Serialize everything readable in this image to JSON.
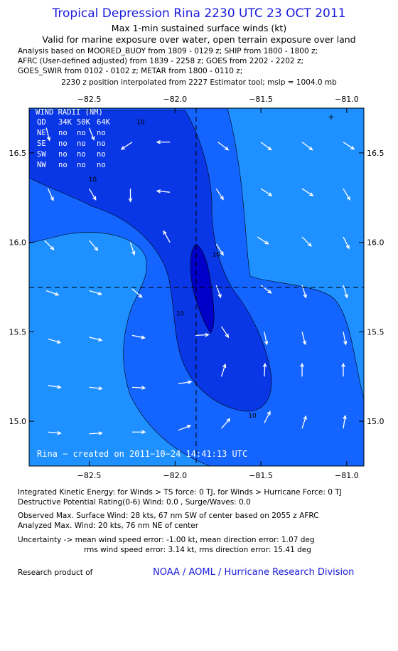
{
  "header": {
    "title": "Tropical Depression Rina 2230 UTC 23 OCT 2011",
    "subtitle_1": "Max 1-min sustained surface winds (kt)",
    "subtitle_2": "Valid for marine exposure over water, open terrain exposure over land"
  },
  "analysis": {
    "line_1": "Analysis based on MOORED_BUOY from 1809 - 0129 z; SHIP from 1800 - 1800 z;",
    "line_2": "AFRC (User-defined adjusted) from 1839 - 2258 z; GOES from 2202 - 2202 z;",
    "line_3": "GOES_SWIR from 0102 - 0102 z; METAR from 1800 - 0110 z;",
    "line_4": "2230 z position interpolated from 2227 Estimator tool; mslp = 1004.0 mb"
  },
  "colors": {
    "light_blue": "#1e90ff",
    "mid_blue": "#1464ff",
    "dark_blue": "#0a37e6",
    "darkest_blue": "#0000c8",
    "arrow": "#ffffff",
    "link": "#1a1adc"
  },
  "chart_data": {
    "type": "contour-vector-map",
    "xlim": [
      -82.85,
      -80.9
    ],
    "ylim": [
      14.75,
      16.75
    ],
    "x_ticks": [
      -82.5,
      -82.0,
      -81.5,
      -81.0
    ],
    "x_tick_labels": [
      "−82.5",
      "−82.0",
      "−81.5",
      "−81.0"
    ],
    "y_ticks": [
      15.0,
      15.5,
      16.0,
      16.5
    ],
    "y_tick_labels": [
      "15.0",
      "15.5",
      "16.0",
      "16.5"
    ],
    "center": {
      "lon": -81.92,
      "lat": 15.74
    },
    "contour_labels": [
      {
        "text": "10",
        "lon": -82.2,
        "lat": 16.66
      },
      {
        "text": "10",
        "lon": -82.48,
        "lat": 16.34
      },
      {
        "text": "10",
        "lon": -81.76,
        "lat": 15.92
      },
      {
        "text": "10",
        "lon": -81.97,
        "lat": 15.59
      },
      {
        "text": "10",
        "lon": -81.55,
        "lat": 15.02
      }
    ],
    "wind_radii": {
      "title": "WIND RADII (NM)",
      "header": [
        "QD",
        "34K",
        "50K",
        "64K"
      ],
      "rows": [
        [
          "NE",
          "no",
          "no",
          "no"
        ],
        [
          "SE",
          "no",
          "no",
          "no"
        ],
        [
          "SW",
          "no",
          "no",
          "no"
        ],
        [
          "NW",
          "no",
          "no",
          "no"
        ]
      ]
    },
    "credit": "Rina − created on 2011−10−24 14:41:13 UTC",
    "wind_vectors": [
      {
        "lon": -82.75,
        "lat": 16.64,
        "u": 0.25,
        "v": -1.0
      },
      {
        "lon": -82.5,
        "lat": 16.64,
        "u": 0.4,
        "v": -1.0
      },
      {
        "lon": -82.25,
        "lat": 16.56,
        "u": -0.9,
        "v": -0.6
      },
      {
        "lon": -82.03,
        "lat": 16.56,
        "u": -1.0,
        "v": 0.0
      },
      {
        "lon": -81.75,
        "lat": 16.56,
        "u": 0.8,
        "v": -0.6
      },
      {
        "lon": -81.5,
        "lat": 16.56,
        "u": 0.8,
        "v": -0.6
      },
      {
        "lon": -81.26,
        "lat": 16.56,
        "u": 0.8,
        "v": -0.6
      },
      {
        "lon": -81.02,
        "lat": 16.56,
        "u": 0.85,
        "v": -0.55
      },
      {
        "lon": -82.74,
        "lat": 16.3,
        "u": 0.4,
        "v": -0.9
      },
      {
        "lon": -82.5,
        "lat": 16.3,
        "u": 0.5,
        "v": -0.85
      },
      {
        "lon": -82.26,
        "lat": 16.3,
        "u": 0.0,
        "v": -1.0
      },
      {
        "lon": -82.03,
        "lat": 16.28,
        "u": -1.0,
        "v": 0.1
      },
      {
        "lon": -81.76,
        "lat": 16.3,
        "u": 0.55,
        "v": -0.85
      },
      {
        "lon": -81.5,
        "lat": 16.3,
        "u": 0.85,
        "v": -0.55
      },
      {
        "lon": -81.26,
        "lat": 16.3,
        "u": 0.85,
        "v": -0.55
      },
      {
        "lon": -81.02,
        "lat": 16.3,
        "u": 0.5,
        "v": -0.85
      },
      {
        "lon": -82.76,
        "lat": 16.01,
        "u": 0.7,
        "v": -0.7
      },
      {
        "lon": -82.5,
        "lat": 16.01,
        "u": 0.65,
        "v": -0.75
      },
      {
        "lon": -82.26,
        "lat": 16.0,
        "u": 0.3,
        "v": -0.95
      },
      {
        "lon": -82.03,
        "lat": 16.0,
        "u": -0.5,
        "v": 0.9
      },
      {
        "lon": -81.76,
        "lat": 15.99,
        "u": 0.55,
        "v": -0.85
      },
      {
        "lon": -81.52,
        "lat": 16.03,
        "u": 0.85,
        "v": -0.55
      },
      {
        "lon": -81.26,
        "lat": 16.03,
        "u": 0.7,
        "v": -0.7
      },
      {
        "lon": -81.02,
        "lat": 16.03,
        "u": 0.45,
        "v": -0.9
      },
      {
        "lon": -82.75,
        "lat": 15.73,
        "u": 1.0,
        "v": -0.35
      },
      {
        "lon": -82.5,
        "lat": 15.73,
        "u": 1.0,
        "v": -0.3
      },
      {
        "lon": -82.25,
        "lat": 15.74,
        "u": 0.75,
        "v": -0.65
      },
      {
        "lon": -81.76,
        "lat": 15.76,
        "u": 0.35,
        "v": -0.95
      },
      {
        "lon": -81.5,
        "lat": 15.76,
        "u": 0.8,
        "v": -0.6
      },
      {
        "lon": -81.26,
        "lat": 15.76,
        "u": 0.3,
        "v": -0.95
      },
      {
        "lon": -81.02,
        "lat": 15.76,
        "u": 0.3,
        "v": -0.95
      },
      {
        "lon": -82.74,
        "lat": 15.46,
        "u": 1.0,
        "v": -0.3
      },
      {
        "lon": -82.5,
        "lat": 15.47,
        "u": 1.0,
        "v": -0.25
      },
      {
        "lon": -82.25,
        "lat": 15.48,
        "u": 1.0,
        "v": -0.2
      },
      {
        "lon": -81.88,
        "lat": 15.48,
        "u": 1.0,
        "v": 0.05
      },
      {
        "lon": -81.73,
        "lat": 15.53,
        "u": 0.55,
        "v": -0.85
      },
      {
        "lon": -81.48,
        "lat": 15.5,
        "u": 0.2,
        "v": -1.0
      },
      {
        "lon": -81.26,
        "lat": 15.5,
        "u": 0.25,
        "v": -1.0
      },
      {
        "lon": -81.02,
        "lat": 15.5,
        "u": 0.2,
        "v": -1.0
      },
      {
        "lon": -82.74,
        "lat": 15.2,
        "u": 1.0,
        "v": -0.15
      },
      {
        "lon": -82.5,
        "lat": 15.19,
        "u": 1.0,
        "v": -0.1
      },
      {
        "lon": -82.25,
        "lat": 15.19,
        "u": 1.0,
        "v": -0.05
      },
      {
        "lon": -81.98,
        "lat": 15.21,
        "u": 1.0,
        "v": 0.15
      },
      {
        "lon": -81.73,
        "lat": 15.25,
        "u": 0.3,
        "v": 0.95
      },
      {
        "lon": -81.48,
        "lat": 15.25,
        "u": 0.05,
        "v": 1.0
      },
      {
        "lon": -81.26,
        "lat": 15.25,
        "u": 0.0,
        "v": 1.0
      },
      {
        "lon": -81.02,
        "lat": 15.25,
        "u": 0.0,
        "v": 1.0
      },
      {
        "lon": -82.74,
        "lat": 14.94,
        "u": 1.0,
        "v": -0.1
      },
      {
        "lon": -82.5,
        "lat": 14.93,
        "u": 1.0,
        "v": 0.05
      },
      {
        "lon": -82.25,
        "lat": 14.94,
        "u": 1.0,
        "v": 0.0
      },
      {
        "lon": -81.98,
        "lat": 14.95,
        "u": 0.9,
        "v": 0.35
      },
      {
        "lon": -81.73,
        "lat": 14.96,
        "u": 0.65,
        "v": 0.75
      },
      {
        "lon": -81.48,
        "lat": 14.99,
        "u": 0.45,
        "v": 0.9
      },
      {
        "lon": -81.26,
        "lat": 14.96,
        "u": 0.3,
        "v": 0.95
      },
      {
        "lon": -81.02,
        "lat": 14.96,
        "u": 0.15,
        "v": 1.0
      }
    ]
  },
  "footer": {
    "ike": "Integrated Kinetic Energy:  for Winds > TS force: 0 TJ,  for Winds > Hurricane Force: 0 TJ",
    "dpr": "Destructive Potential Rating(0-6)   Wind: 0.0 , Surge/Waves: 0.0",
    "obs_max": "Observed Max. Surface Wind: 28 kts, 67 nm SW of center based on 2055 z AFRC",
    "ana_max": "Analyzed Max. Wind: 20 kts, 76 nm NE of center",
    "unc_1": "Uncertainty -> mean wind speed error:  -1.00 kt,   mean direction error: 1.07 deg",
    "unc_2": "rms wind speed error:  3.14 kt,   rms direction error: 15.41 deg",
    "research": "Research product of",
    "link": "NOAA / AOML / Hurricane Research Division"
  }
}
